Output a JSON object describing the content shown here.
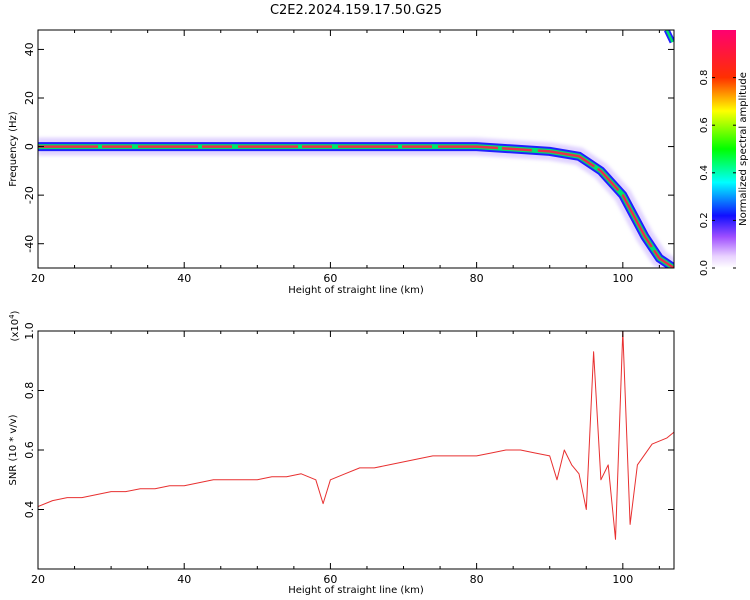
{
  "title": "C2E2.2024.159.17.50.G25",
  "colors": {
    "snr_line": "#e83030",
    "signal_peak": "#e8304a",
    "ridge_mid": "#00e070",
    "ridge_edge": "#2020ff",
    "halo": "#c8b0ff"
  },
  "chart_data": [
    {
      "type": "heatmap",
      "xlabel": "Height of straight line (km)",
      "ylabel": "Frequency (Hz)",
      "xlim": [
        20,
        107
      ],
      "ylim": [
        -50,
        48
      ],
      "xticks": [
        20,
        40,
        60,
        80,
        100
      ],
      "yticks": [
        -40,
        -20,
        0,
        20,
        40
      ],
      "ridge_center_hz": [
        [
          20,
          0
        ],
        [
          55,
          0
        ],
        [
          80,
          0
        ],
        [
          90,
          -2
        ],
        [
          94,
          -4
        ],
        [
          97,
          -10
        ],
        [
          100,
          -20
        ],
        [
          103,
          -37
        ],
        [
          105,
          -46
        ],
        [
          107,
          -50
        ]
      ],
      "ridge_upper_hz": [
        [
          106,
          48
        ],
        [
          106.8,
          43
        ]
      ],
      "colorbar": {
        "label": "Normalized spectral amplitude",
        "range": [
          0,
          1
        ],
        "ticks": [
          "0.0",
          "0.2",
          "0.4",
          "0.6",
          "0.8"
        ],
        "tick_values": [
          0.0,
          0.2,
          0.4,
          0.6,
          0.8
        ]
      },
      "grid": false
    },
    {
      "type": "line",
      "xlabel": "Height of straight line (km)",
      "ylabel": "SNR (10 * v/v)",
      "y_multiplier": "(x10",
      "y_multiplier_exp": "4",
      "y_multiplier_close": ")",
      "xlim": [
        20,
        107
      ],
      "ylim": [
        0.2,
        1.0
      ],
      "xticks": [
        20,
        40,
        60,
        80,
        100
      ],
      "yticks": [
        0.4,
        0.6,
        0.8,
        1.0
      ],
      "series": [
        {
          "x": [
            20,
            22,
            24,
            26,
            28,
            30,
            32,
            34,
            36,
            38,
            40,
            42,
            44,
            46,
            48,
            50,
            52,
            54,
            56,
            58,
            59,
            60,
            62,
            64,
            66,
            68,
            70,
            72,
            74,
            76,
            78,
            80,
            82,
            84,
            86,
            88,
            90,
            91,
            92,
            93,
            94,
            95,
            96,
            97,
            98,
            99,
            100,
            101,
            102,
            104,
            106,
            107
          ],
          "y": [
            0.41,
            0.43,
            0.44,
            0.44,
            0.45,
            0.46,
            0.46,
            0.47,
            0.47,
            0.48,
            0.48,
            0.49,
            0.5,
            0.5,
            0.5,
            0.5,
            0.51,
            0.51,
            0.52,
            0.5,
            0.42,
            0.5,
            0.52,
            0.54,
            0.54,
            0.55,
            0.56,
            0.57,
            0.58,
            0.58,
            0.58,
            0.58,
            0.59,
            0.6,
            0.6,
            0.59,
            0.58,
            0.5,
            0.6,
            0.55,
            0.52,
            0.4,
            0.93,
            0.5,
            0.55,
            0.3,
            1.0,
            0.35,
            0.55,
            0.62,
            0.64,
            0.66
          ]
        }
      ],
      "grid": false
    }
  ]
}
